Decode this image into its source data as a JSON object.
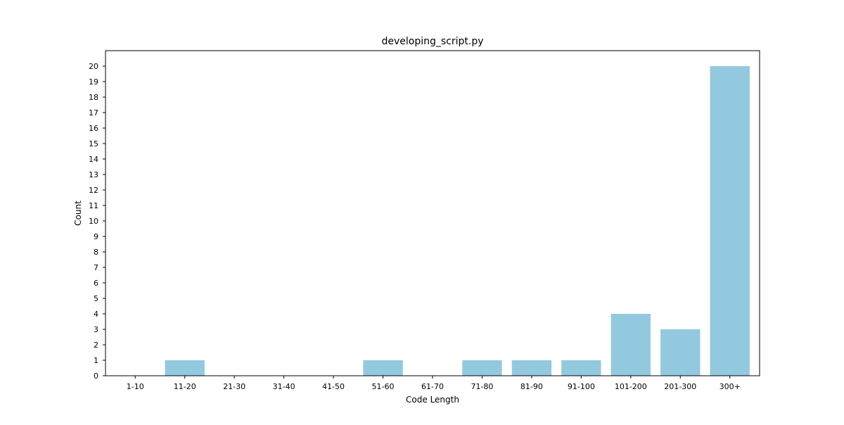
{
  "chart_data": {
    "type": "bar",
    "title": "developing_script.py",
    "xlabel": "Code Length",
    "ylabel": "Count",
    "categories": [
      "1-10",
      "11-20",
      "21-30",
      "31-40",
      "41-50",
      "51-60",
      "61-70",
      "71-80",
      "81-90",
      "91-100",
      "101-200",
      "201-300",
      "300+"
    ],
    "values": [
      0,
      1,
      0,
      0,
      0,
      1,
      0,
      1,
      1,
      1,
      4,
      3,
      20
    ],
    "ylim": [
      0,
      21
    ],
    "yticks": [
      0,
      1,
      2,
      3,
      4,
      5,
      6,
      7,
      8,
      9,
      10,
      11,
      12,
      13,
      14,
      15,
      16,
      17,
      18,
      19,
      20
    ],
    "bar_color": "#92c9df",
    "grid": false,
    "legend": "none"
  }
}
